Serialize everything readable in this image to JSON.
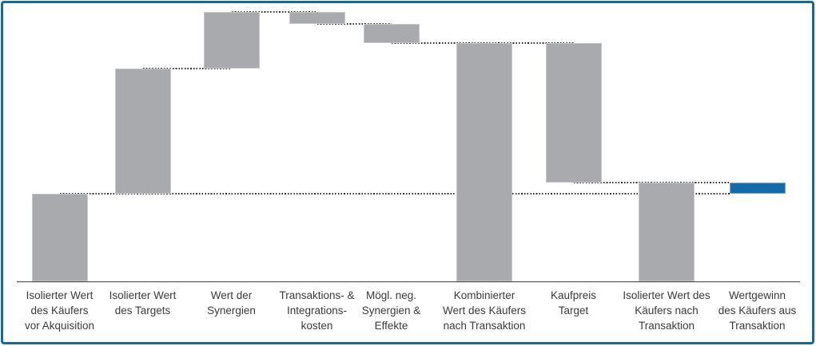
{
  "chart_data": {
    "type": "waterfall",
    "title": "",
    "orientation": "vertical",
    "value_axis_visible": false,
    "gridlines": "off",
    "legend": "none",
    "connector_style": "dotted",
    "units": "relative value units, estimated (buyer value before acquisition = 100); no numeric labels are shown in the chart",
    "baseline": 0,
    "steps": [
      {
        "label": "Isolierter Wert des Käufers vor Akquisition",
        "label_lines": [
          "Isolierter Wert",
          "des Käufers",
          "vor Akquisition"
        ],
        "kind": "total",
        "from": 0,
        "to": 100,
        "color": "gray"
      },
      {
        "label": "Isolierter Wert des Targets",
        "label_lines": [
          "Isolierter Wert",
          "des Targets"
        ],
        "kind": "increase",
        "from": 100,
        "to": 243,
        "color": "gray"
      },
      {
        "label": "Wert der Synergien",
        "label_lines": [
          "Wert der",
          "Synergien"
        ],
        "kind": "increase",
        "from": 243,
        "to": 307,
        "color": "gray"
      },
      {
        "label": "Transaktions- & Integrationskosten",
        "label_lines": [
          "Transaktions- &",
          "Integrations-",
          "kosten"
        ],
        "kind": "decrease",
        "from": 307,
        "to": 294,
        "color": "gray"
      },
      {
        "label": "Mögl. neg. Synergien & Effekte",
        "label_lines": [
          "Mögl. neg.",
          "Synergien &",
          "Effekte"
        ],
        "kind": "decrease",
        "from": 294,
        "to": 272,
        "color": "gray"
      },
      {
        "label": "Kombinierter Wert des Käufers nach Transaktion",
        "label_lines": [
          "Kombinierter",
          "Wert des Käufers",
          "nach Transaktion"
        ],
        "kind": "total",
        "from": 0,
        "to": 272,
        "color": "gray"
      },
      {
        "label": "Kaufpreis Target",
        "label_lines": [
          "Kaufpreis",
          "Target"
        ],
        "kind": "decrease",
        "from": 272,
        "to": 113,
        "color": "gray"
      },
      {
        "label": "Isolierter Wert des Käufers nach Transaktion",
        "label_lines": [
          "Isolierter Wert des",
          "Käufers nach",
          "Transaktion"
        ],
        "kind": "total",
        "from": 0,
        "to": 113,
        "color": "gray"
      },
      {
        "label": "Wertgewinn des Käufers aus Transaktion",
        "label_lines": [
          "Wertgewinn",
          "des Käufers aus",
          "Transaktion"
        ],
        "kind": "result",
        "from": 100,
        "to": 113,
        "color": "blue"
      }
    ]
  },
  "colors": {
    "background": "#FFFFFF",
    "frame_border": "#15679E",
    "bar_gray": "#A9AAAD",
    "bar_gray_border": "#C6C7CA",
    "bar_blue": "#146BA9",
    "bar_blue_border": "#7FA9CD",
    "axis": "#3F3F3F",
    "connector": "#2E2E2E",
    "label_text": "#3A3A3A"
  }
}
